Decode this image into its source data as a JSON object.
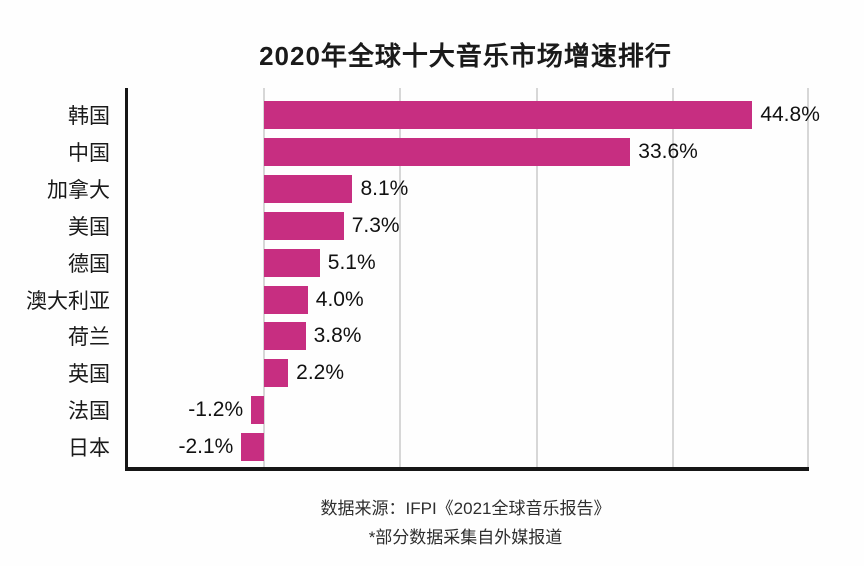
{
  "title": "2020年全球十大音乐市场增速排行",
  "footer": {
    "line1": "数据来源：IFPI《2021全球音乐报告》",
    "line2": "*部分数据采集自外媒报道"
  },
  "colors": {
    "bar": "#c72e81",
    "grid": "#d7d7d7",
    "axis": "#161616",
    "text": "#1a1a1a"
  },
  "chart_data": {
    "type": "bar",
    "orientation": "horizontal",
    "title": "2020年全球十大音乐市场增速排行",
    "categories": [
      "韩国",
      "中国",
      "加拿大",
      "美国",
      "德国",
      "澳大利亚",
      "荷兰",
      "英国",
      "法国",
      "日本"
    ],
    "values": [
      44.8,
      33.6,
      8.1,
      7.3,
      5.1,
      4.0,
      3.8,
      2.2,
      -1.2,
      -2.1
    ],
    "value_labels": [
      "44.8%",
      "33.6%",
      "8.1%",
      "7.3%",
      "5.1%",
      "4.0%",
      "3.8%",
      "2.2%",
      "-1.2%",
      "-2.1%"
    ],
    "xlabel": "",
    "ylabel": "",
    "xlim": [
      -12.5,
      50
    ],
    "gridline_values": [
      0,
      12.5,
      25,
      37.5,
      50
    ],
    "grid": true,
    "legend": false,
    "x_tick_labels_visible": false
  }
}
